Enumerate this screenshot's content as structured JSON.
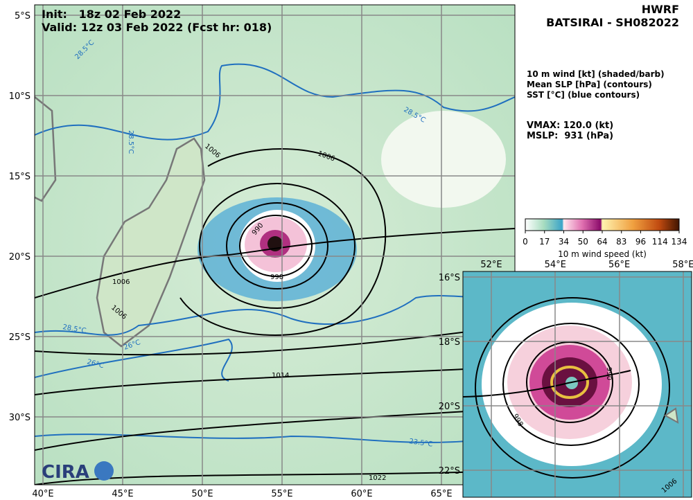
{
  "header": {
    "init": "Init:   18z 02 Feb 2022",
    "valid": "Valid: 12z 03 Feb 2022 (Fcst hr: 018)",
    "model": "HWRF",
    "storm": "BATSIRAI - SH082022"
  },
  "legend": {
    "fields": [
      "10 m wind [kt] (shaded/barb)",
      "Mean SLP [hPa] (contours)",
      "SST [°C] (blue contours)"
    ],
    "vmax": "VMAX: 120.0 (kt)",
    "mslp": "MSLP:  931 (hPa)"
  },
  "colorbar": {
    "ticks": [
      0,
      17,
      34,
      50,
      64,
      83,
      96,
      114,
      134
    ],
    "label": "10 m wind speed (kt)"
  },
  "map": {
    "lat_labels": [
      "5°S",
      "10°S",
      "15°S",
      "20°S",
      "25°S",
      "30°S"
    ],
    "lon_labels": [
      "40°E",
      "45°E",
      "50°E",
      "55°E",
      "60°E",
      "65°E"
    ],
    "slp_labels": [
      "1006",
      "1006",
      "1006",
      "1006",
      "990",
      "998",
      "1014",
      "1022"
    ],
    "sst_labels": [
      "28.5°C",
      "28.5°C",
      "28.5°C",
      "28.5°C",
      "26°C",
      "26°C",
      "23.5°C"
    ]
  },
  "inset": {
    "lon_labels": [
      "52°E",
      "54°E",
      "56°E",
      "58°E"
    ],
    "lat_labels": [
      "16°S",
      "18°S",
      "20°S",
      "22°S"
    ],
    "slp_labels": [
      "990",
      "998",
      "1006"
    ]
  },
  "logo": "CIRA"
}
